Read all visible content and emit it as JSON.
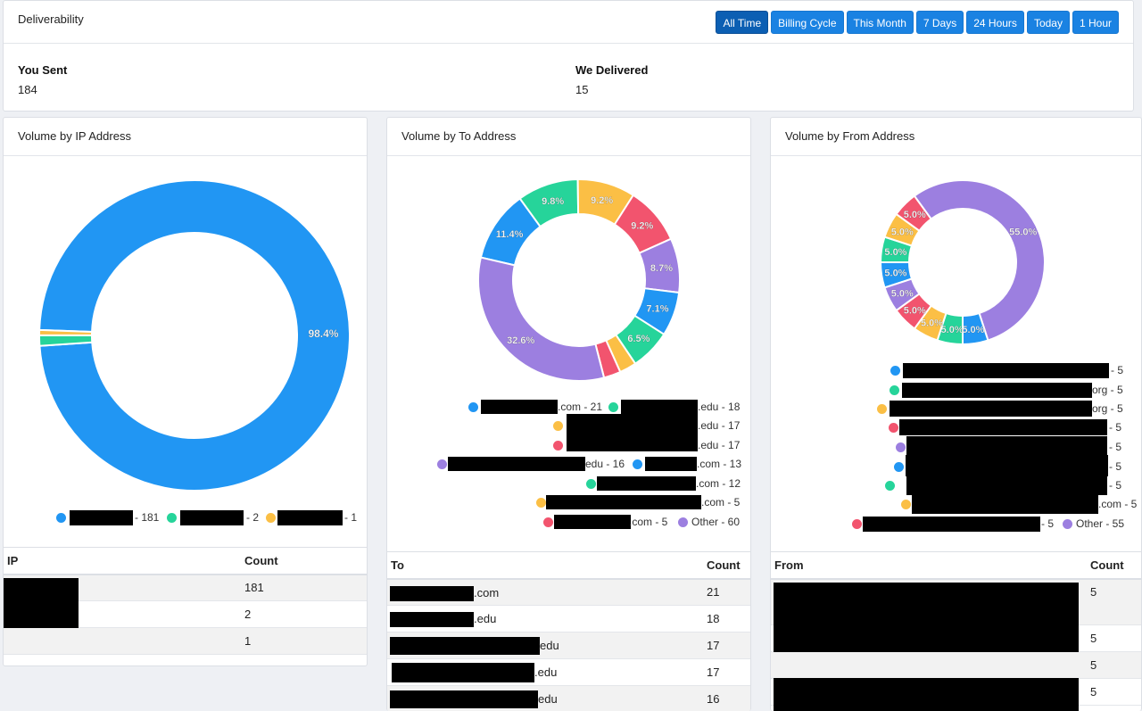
{
  "header": {
    "title": "Deliverability",
    "ranges": [
      "All Time",
      "Billing Cycle",
      "This Month",
      "7 Days",
      "24 Hours",
      "Today",
      "1 Hour"
    ],
    "active_range": "All Time"
  },
  "stats": {
    "sent_label": "You Sent",
    "sent_value": "184",
    "delivered_label": "We Delivered",
    "delivered_value": "15"
  },
  "colors": {
    "blue": "#2196f3",
    "green": "#26d49a",
    "yellow": "#fbbf45",
    "red": "#f2546e",
    "purple": "#9c7fe0"
  },
  "ip_panel": {
    "title": "Volume by IP Address",
    "chart_data": {
      "type": "pie",
      "slices": [
        {
          "value": 181,
          "color": "blue",
          "label": "98.4%"
        },
        {
          "value": 2,
          "color": "green",
          "label": ""
        },
        {
          "value": 1,
          "color": "yellow",
          "label": ""
        }
      ]
    },
    "legend": [
      {
        "color": "blue",
        "text": "- 181"
      },
      {
        "color": "green",
        "text": "- 2"
      },
      {
        "color": "yellow",
        "text": "- 1"
      }
    ],
    "table": {
      "col1": "IP",
      "col2": "Count",
      "rows": [
        "181",
        "2",
        "1"
      ]
    }
  },
  "to_panel": {
    "title": "Volume by To Address",
    "chart_data": {
      "type": "pie",
      "slices": [
        {
          "value": 21,
          "color": "blue",
          "label": "11.4%"
        },
        {
          "value": 18,
          "color": "green",
          "label": "9.8%"
        },
        {
          "value": 17,
          "color": "yellow",
          "label": "9.2%"
        },
        {
          "value": 17,
          "color": "red",
          "label": "9.2%"
        },
        {
          "value": 16,
          "color": "purple",
          "label": "8.7%"
        },
        {
          "value": 13,
          "color": "blue",
          "label": "7.1%"
        },
        {
          "value": 12,
          "color": "green",
          "label": "6.5%"
        },
        {
          "value": 5,
          "color": "yellow",
          "label": ""
        },
        {
          "value": 5,
          "color": "red",
          "label": ""
        },
        {
          "value": 60,
          "color": "purple",
          "label": "32.6%"
        }
      ]
    },
    "legend": [
      {
        "color": "blue",
        "text": ".com - 21"
      },
      {
        "color": "green",
        "text": ".edu - 18"
      },
      {
        "color": "yellow",
        "text": ".edu - 17"
      },
      {
        "color": "red",
        "text": ".edu - 17"
      },
      {
        "color": "purple",
        "text": "edu - 16"
      },
      {
        "color": "blue",
        "text": ".com - 13"
      },
      {
        "color": "green",
        "text": ".com - 12"
      },
      {
        "color": "yellow",
        "text": ".com - 5"
      },
      {
        "color": "red",
        "text": ".com - 5"
      },
      {
        "color": "purple",
        "text": "Other - 60"
      }
    ],
    "table": {
      "col1": "To",
      "col2": "Count",
      "rows": [
        {
          "suffix": ".com",
          "count": "21"
        },
        {
          "suffix": ".edu",
          "count": "18"
        },
        {
          "suffix": "edu",
          "count": "17"
        },
        {
          "suffix": ".edu",
          "count": "17"
        },
        {
          "suffix": "edu",
          "count": "16"
        }
      ]
    }
  },
  "from_panel": {
    "title": "Volume by From Address",
    "chart_data": {
      "type": "pie",
      "slices": [
        {
          "value": 5,
          "color": "blue",
          "label": "5.0%"
        },
        {
          "value": 5,
          "color": "green",
          "label": "5.0%"
        },
        {
          "value": 5,
          "color": "yellow",
          "label": "5.0%"
        },
        {
          "value": 5,
          "color": "red",
          "label": "5.0%"
        },
        {
          "value": 55,
          "color": "purple",
          "label": "55.0%"
        },
        {
          "value": 5,
          "color": "blue",
          "label": "5.0%"
        },
        {
          "value": 5,
          "color": "green",
          "label": "5.0%"
        },
        {
          "value": 5,
          "color": "yellow",
          "label": "5.0%"
        },
        {
          "value": 5,
          "color": "red",
          "label": "5.0%"
        },
        {
          "value": 5,
          "color": "purple",
          "label": "5.0%"
        }
      ]
    },
    "legend": [
      {
        "color": "blue",
        "text": "- 5"
      },
      {
        "color": "green",
        "text": "org - 5"
      },
      {
        "color": "yellow",
        "text": "org - 5"
      },
      {
        "color": "red",
        "text": "- 5"
      },
      {
        "color": "purple",
        "text": "- 5"
      },
      {
        "color": "blue",
        "text": "- 5"
      },
      {
        "color": "green",
        "text": "- 5"
      },
      {
        "color": "yellow",
        "text": ".com - 5"
      },
      {
        "color": "red",
        "text": "- 5"
      },
      {
        "color": "purple",
        "text": "Other - 55"
      }
    ],
    "table": {
      "col1": "From",
      "col2": "Count",
      "rows": [
        "5",
        "5",
        "5",
        "5"
      ]
    }
  }
}
